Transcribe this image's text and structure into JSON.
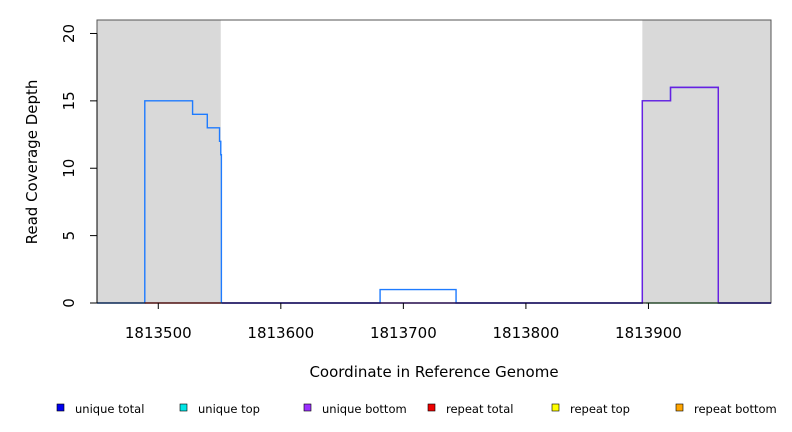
{
  "chart_data": {
    "type": "line",
    "title": "",
    "xlabel": "Coordinate in Reference Genome",
    "ylabel": "Read Coverage Depth",
    "xlim": [
      1813450,
      1814000
    ],
    "ylim": [
      0,
      21
    ],
    "x_ticks": [
      1813500,
      1813600,
      1813700,
      1813800,
      1813900
    ],
    "x_tick_labels": [
      "1813500",
      "1813600",
      "1813700",
      "1813800",
      "1813900"
    ],
    "y_ticks": [
      0,
      5,
      10,
      15,
      20
    ],
    "y_tick_labels": [
      "0",
      "5",
      "10",
      "15",
      "20"
    ],
    "grid": false,
    "shaded_regions": [
      {
        "x": [
          1813450,
          1813551
        ],
        "color": "#d9d9d9"
      },
      {
        "x": [
          1813895,
          1814000
        ],
        "color": "#d9d9d9"
      }
    ],
    "legend_position": "bottom",
    "legend": [
      {
        "label": "unique total",
        "color": "#0000ee"
      },
      {
        "label": "unique top",
        "color": "#00e5e5"
      },
      {
        "label": "unique bottom",
        "color": "#9b30ff"
      },
      {
        "label": "repeat total",
        "color": "#ee0000"
      },
      {
        "label": "repeat top",
        "color": "#ffff00"
      },
      {
        "label": "repeat bottom",
        "color": "#ffa500"
      }
    ],
    "series": [
      {
        "name": "unique total",
        "color": "#1e7bff",
        "step": true,
        "x": [
          1813450,
          1813489,
          1813528,
          1813540,
          1813550,
          1813551,
          1813551.5,
          1813552,
          1813681,
          1813743,
          1813895,
          1813918,
          1813957,
          1814000
        ],
        "y": [
          0,
          15,
          14,
          13,
          12,
          11,
          0,
          0,
          1,
          0,
          15,
          16,
          0,
          0
        ]
      },
      {
        "name": "unique bottom",
        "color": "#6a1fe0",
        "step": true,
        "x": [
          1813552,
          1813895,
          1813918,
          1813957,
          1814000
        ],
        "y": [
          0,
          15,
          16,
          0,
          0
        ]
      },
      {
        "name": "repeat total",
        "color": "#ee3030",
        "step": true,
        "x": [
          1813489,
          1813551
        ],
        "y": [
          0,
          0
        ]
      },
      {
        "name": "unique top",
        "color": "#7fe08a",
        "step": true,
        "x": [
          1813898,
          1813957
        ],
        "y": [
          0,
          0
        ]
      }
    ]
  }
}
